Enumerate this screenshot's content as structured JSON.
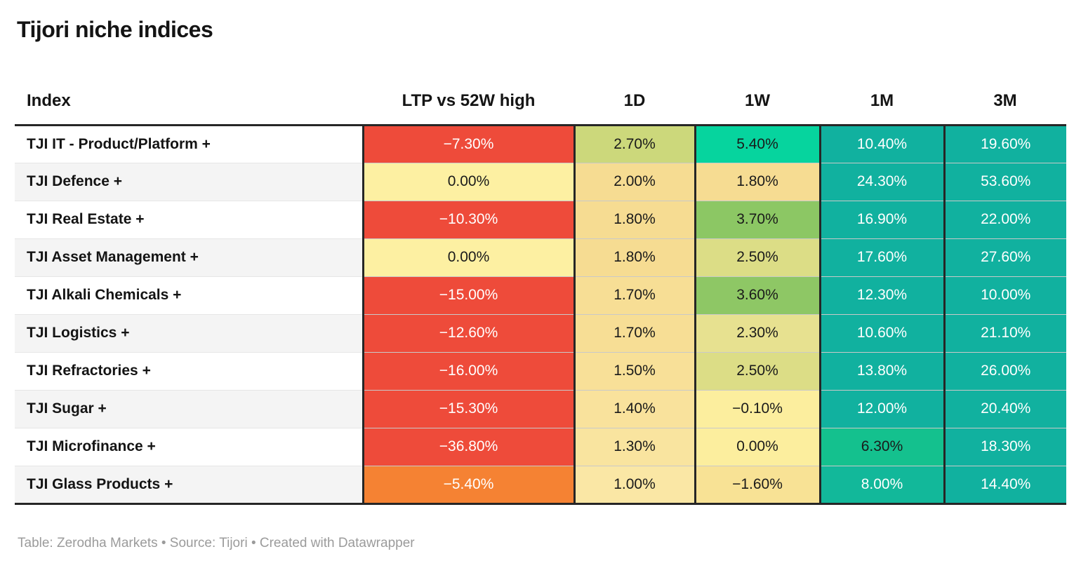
{
  "title": "Tijori niche indices",
  "footer": "Table: Zerodha Markets • Source: Tijori • Created with Datawrapper",
  "columns": [
    "Index",
    "LTP vs 52W high",
    "1D",
    "1W",
    "1M",
    "3M"
  ],
  "palette": {
    "negative_red": "#ee4b3a",
    "negative_orange": "#f58233",
    "zero_yellow": "#fdf0a2",
    "positive_teal": "#11b19f",
    "border_dark": "#262626"
  },
  "table": {
    "rows": [
      {
        "index": "TJI IT - Product/Platform +",
        "cells": [
          {
            "v": "−7.30%",
            "bg": "#ee4b3a",
            "fg": "white"
          },
          {
            "v": "2.70%",
            "bg": "#ccd87b",
            "fg": "black"
          },
          {
            "v": "5.40%",
            "bg": "#06d49e",
            "fg": "black"
          },
          {
            "v": "10.40%",
            "bg": "#11b19f",
            "fg": "white"
          },
          {
            "v": "19.60%",
            "bg": "#11b19f",
            "fg": "white"
          }
        ]
      },
      {
        "index": "TJI Defence +",
        "cells": [
          {
            "v": "0.00%",
            "bg": "#fdf0a2",
            "fg": "black"
          },
          {
            "v": "2.00%",
            "bg": "#f6dc92",
            "fg": "black"
          },
          {
            "v": "1.80%",
            "bg": "#f6dc92",
            "fg": "black"
          },
          {
            "v": "24.30%",
            "bg": "#11b19f",
            "fg": "white"
          },
          {
            "v": "53.60%",
            "bg": "#11b19f",
            "fg": "white"
          }
        ]
      },
      {
        "index": "TJI Real Estate +",
        "cells": [
          {
            "v": "−10.30%",
            "bg": "#ee4b3a",
            "fg": "white"
          },
          {
            "v": "1.80%",
            "bg": "#f6dc92",
            "fg": "black"
          },
          {
            "v": "3.70%",
            "bg": "#8cc764",
            "fg": "black"
          },
          {
            "v": "16.90%",
            "bg": "#11b19f",
            "fg": "white"
          },
          {
            "v": "22.00%",
            "bg": "#11b19f",
            "fg": "white"
          }
        ]
      },
      {
        "index": "TJI Asset Management +",
        "cells": [
          {
            "v": "0.00%",
            "bg": "#fdf0a2",
            "fg": "black"
          },
          {
            "v": "1.80%",
            "bg": "#f6dc92",
            "fg": "black"
          },
          {
            "v": "2.50%",
            "bg": "#dcdd86",
            "fg": "black"
          },
          {
            "v": "17.60%",
            "bg": "#11b19f",
            "fg": "white"
          },
          {
            "v": "27.60%",
            "bg": "#11b19f",
            "fg": "white"
          }
        ]
      },
      {
        "index": "TJI Alkali Chemicals +",
        "cells": [
          {
            "v": "−15.00%",
            "bg": "#ee4b3a",
            "fg": "white"
          },
          {
            "v": "1.70%",
            "bg": "#f7de95",
            "fg": "black"
          },
          {
            "v": "3.60%",
            "bg": "#8ec765",
            "fg": "black"
          },
          {
            "v": "12.30%",
            "bg": "#11b19f",
            "fg": "white"
          },
          {
            "v": "10.00%",
            "bg": "#11b19f",
            "fg": "white"
          }
        ]
      },
      {
        "index": "TJI Logistics +",
        "cells": [
          {
            "v": "−12.60%",
            "bg": "#ee4b3a",
            "fg": "white"
          },
          {
            "v": "1.70%",
            "bg": "#f7de95",
            "fg": "black"
          },
          {
            "v": "2.30%",
            "bg": "#e7e190",
            "fg": "black"
          },
          {
            "v": "10.60%",
            "bg": "#11b19f",
            "fg": "white"
          },
          {
            "v": "21.10%",
            "bg": "#11b19f",
            "fg": "white"
          }
        ]
      },
      {
        "index": "TJI Refractories +",
        "cells": [
          {
            "v": "−16.00%",
            "bg": "#ee4b3a",
            "fg": "white"
          },
          {
            "v": "1.50%",
            "bg": "#f8e098",
            "fg": "black"
          },
          {
            "v": "2.50%",
            "bg": "#dcdd86",
            "fg": "black"
          },
          {
            "v": "13.80%",
            "bg": "#11b19f",
            "fg": "white"
          },
          {
            "v": "26.00%",
            "bg": "#11b19f",
            "fg": "white"
          }
        ]
      },
      {
        "index": "TJI Sugar +",
        "cells": [
          {
            "v": "−15.30%",
            "bg": "#ee4b3a",
            "fg": "white"
          },
          {
            "v": "1.40%",
            "bg": "#f9e29c",
            "fg": "black"
          },
          {
            "v": "−0.10%",
            "bg": "#fcee9e",
            "fg": "black"
          },
          {
            "v": "12.00%",
            "bg": "#11b19f",
            "fg": "white"
          },
          {
            "v": "20.40%",
            "bg": "#11b19f",
            "fg": "white"
          }
        ]
      },
      {
        "index": "TJI Microfinance +",
        "cells": [
          {
            "v": "−36.80%",
            "bg": "#ee4b3a",
            "fg": "white"
          },
          {
            "v": "1.30%",
            "bg": "#f9e49f",
            "fg": "black"
          },
          {
            "v": "0.00%",
            "bg": "#fcee9e",
            "fg": "black"
          },
          {
            "v": "6.30%",
            "bg": "#14c18e",
            "fg": "black"
          },
          {
            "v": "18.30%",
            "bg": "#11b19f",
            "fg": "white"
          }
        ]
      },
      {
        "index": "TJI Glass Products +",
        "cells": [
          {
            "v": "−5.40%",
            "bg": "#f58233",
            "fg": "white"
          },
          {
            "v": "1.00%",
            "bg": "#fae7a5",
            "fg": "black"
          },
          {
            "v": "−1.60%",
            "bg": "#f8e295",
            "fg": "black"
          },
          {
            "v": "8.00%",
            "bg": "#12b89a",
            "fg": "white"
          },
          {
            "v": "14.40%",
            "bg": "#11b19f",
            "fg": "white"
          }
        ]
      }
    ]
  },
  "chart_data": {
    "type": "table",
    "title": "Tijori niche indices",
    "columns": [
      "Index",
      "LTP vs 52W high",
      "1D",
      "1W",
      "1M",
      "3M"
    ],
    "units": "percent",
    "rows": [
      [
        "TJI IT - Product/Platform +",
        -7.3,
        2.7,
        5.4,
        10.4,
        19.6
      ],
      [
        "TJI Defence +",
        0.0,
        2.0,
        1.8,
        24.3,
        53.6
      ],
      [
        "TJI Real Estate +",
        -10.3,
        1.8,
        3.7,
        16.9,
        22.0
      ],
      [
        "TJI Asset Management +",
        0.0,
        1.8,
        2.5,
        17.6,
        27.6
      ],
      [
        "TJI Alkali Chemicals +",
        -15.0,
        1.7,
        3.6,
        12.3,
        10.0
      ],
      [
        "TJI Logistics +",
        -12.6,
        1.7,
        2.3,
        10.6,
        21.1
      ],
      [
        "TJI Refractories +",
        -16.0,
        1.5,
        2.5,
        13.8,
        26.0
      ],
      [
        "TJI Sugar +",
        -15.3,
        1.4,
        -0.1,
        12.0,
        20.4
      ],
      [
        "TJI Microfinance +",
        -36.8,
        1.3,
        0.0,
        6.3,
        18.3
      ],
      [
        "TJI Glass Products +",
        -5.4,
        1.0,
        -1.6,
        8.0,
        14.4
      ]
    ],
    "layout_hints": {
      "heatmap_cells": true,
      "color_rule": "red = strongly negative, orange = mildly negative, pale yellow ≈ 0, yellow-green/green = small positive, teal = large positive",
      "alternating_row_background": true
    }
  }
}
